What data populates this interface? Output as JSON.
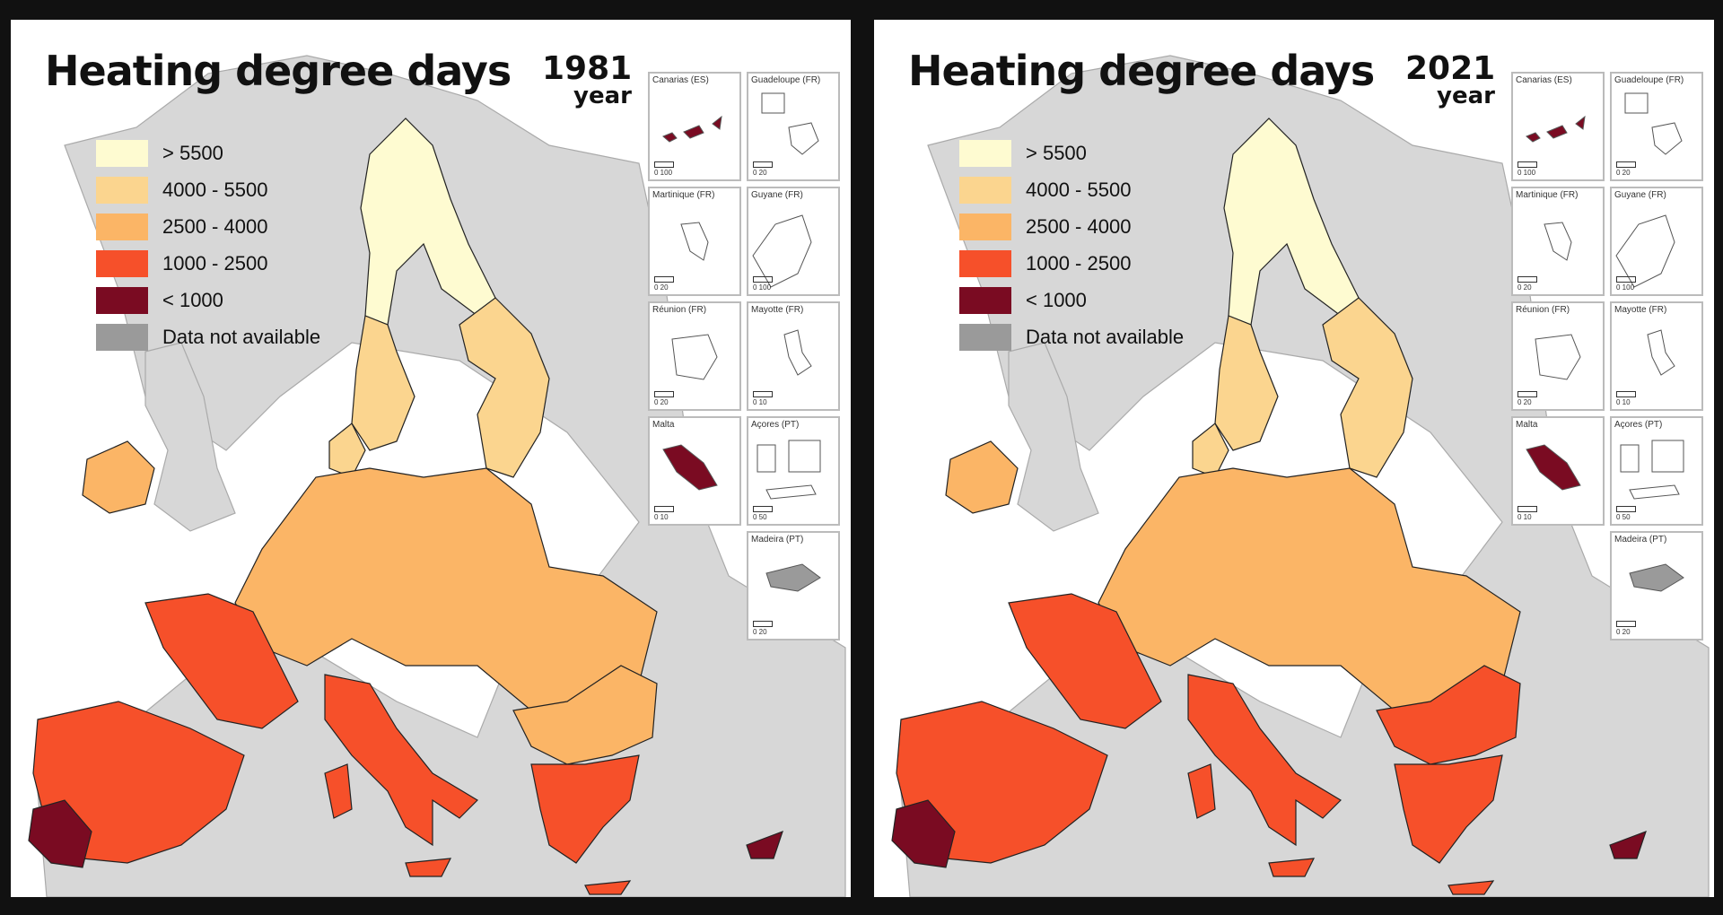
{
  "colors": {
    "gt5500": "#fefbd1",
    "c4000_5500": "#fbd58f",
    "c2500_4000": "#fbb566",
    "c1000_2500": "#f6502a",
    "lt1000": "#7a0b22",
    "na": "#9a9a9a",
    "land": "#d7d7d7",
    "sea": "#ffffff"
  },
  "legend": [
    {
      "label": "> 5500",
      "color": "#fefbd1"
    },
    {
      "label": "4000 - 5500",
      "color": "#fbd58f"
    },
    {
      "label": "2500 - 4000",
      "color": "#fbb566"
    },
    {
      "label": "1000 - 2500",
      "color": "#f6502a"
    },
    {
      "label": "< 1000",
      "color": "#7a0b22"
    },
    {
      "label": "Data not available",
      "color": "#9a9a9a"
    }
  ],
  "panels": [
    {
      "title": "Heating degree days",
      "year": "1981",
      "year_unit": "year",
      "regions": {
        "north": "gt5500",
        "scand_south": "c4000_5500",
        "central": "c2500_4000",
        "france_west": "c1000_2500",
        "iberia": "c1000_2500",
        "iberia_sw": "lt1000",
        "italy": "c1000_2500",
        "balkans": "c2500_4000",
        "greece": "c1000_2500",
        "ireland": "c2500_4000"
      }
    },
    {
      "title": "Heating degree days",
      "year": "2021",
      "year_unit": "year",
      "regions": {
        "north": "gt5500",
        "scand_south": "c4000_5500",
        "central": "c2500_4000",
        "france_west": "c1000_2500",
        "iberia": "c1000_2500",
        "iberia_sw": "lt1000",
        "italy": "c1000_2500",
        "balkans": "c1000_2500",
        "greece": "c1000_2500",
        "ireland": "c2500_4000"
      }
    }
  ],
  "insets": [
    {
      "name": "Canarias (ES)",
      "scale": "0 100"
    },
    {
      "name": "Guadeloupe (FR)",
      "scale": "0 20"
    },
    {
      "name": "Martinique (FR)",
      "scale": "0 20"
    },
    {
      "name": "Guyane (FR)",
      "scale": "0 100"
    },
    {
      "name": "Réunion (FR)",
      "scale": "0 20"
    },
    {
      "name": "Mayotte (FR)",
      "scale": "0 10"
    },
    {
      "name": "Malta",
      "scale": "0 10"
    },
    {
      "name": "Açores (PT)",
      "scale": "0 50"
    },
    {
      "name": "Madeira (PT)",
      "scale": "0 20"
    }
  ]
}
